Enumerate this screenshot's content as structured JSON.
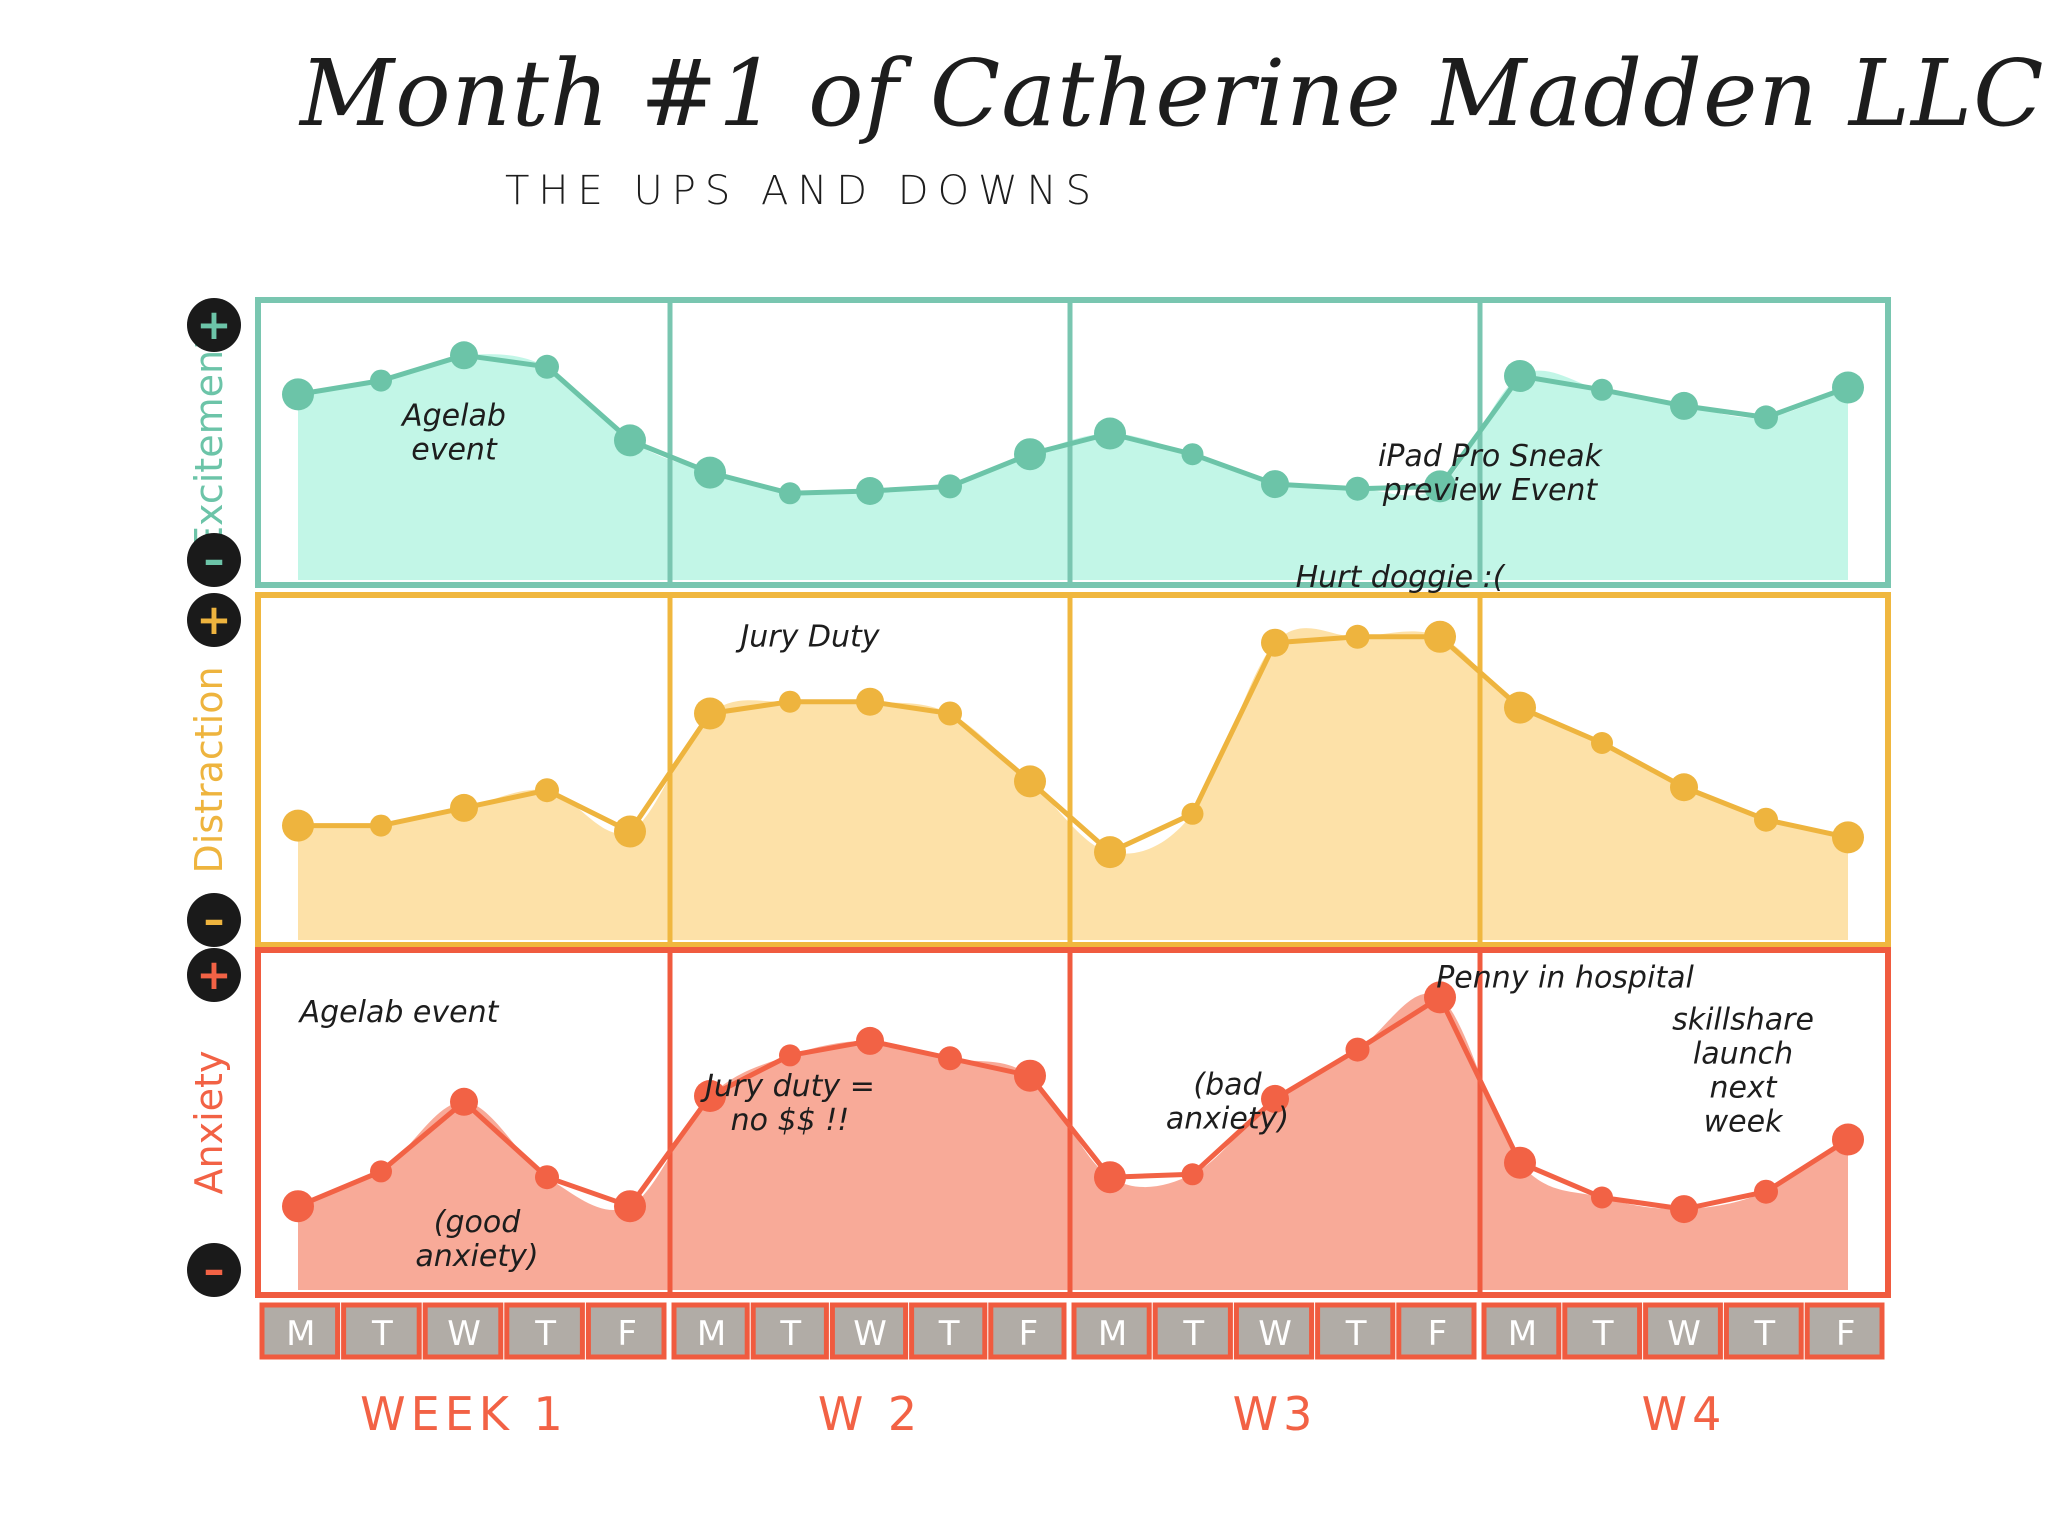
{
  "title": "Month #1 of Catherine Madden LLC",
  "subtitle": "THE UPS AND DOWNS",
  "colors": {
    "excitement_line": "#6cc4a8",
    "excitement_fill": "#bff5e6",
    "excitement_frame": "#79c6b0",
    "distraction_line": "#eeb43e",
    "distraction_fill": "#fddfa3",
    "distraction_frame": "#f0b73f",
    "anxiety_line": "#f26245",
    "anxiety_fill": "#f8a592",
    "anxiety_frame": "#f05b3f",
    "day_box": "#b1aca6",
    "ink": "#1d1d1d"
  },
  "scale_labels": {
    "plus": "+",
    "minus": "–"
  },
  "chart_data": {
    "type": "line",
    "title": "Month #1 of Catherine Madden LLC",
    "subtitle": "THE UPS AND DOWNS",
    "ylim": [
      0,
      10
    ],
    "weeks": [
      "WEEK 1",
      "W 2",
      "W3",
      "W4"
    ],
    "days": [
      "M",
      "T",
      "W",
      "T",
      "F"
    ],
    "series": [
      {
        "name": "Excitement",
        "key": "excitement",
        "values": [
          [
            7.2,
            7.8,
            8.9,
            8.4,
            5.2
          ],
          [
            3.8,
            2.9,
            3.0,
            3.2,
            4.6
          ],
          [
            5.5,
            4.6,
            3.3,
            3.1,
            3.2
          ],
          [
            8.0,
            7.4,
            6.7,
            6.2,
            7.5
          ]
        ],
        "annotations": [
          {
            "lines": [
              "Agelab",
              "event"
            ],
            "week": 0,
            "day": 2
          },
          {
            "lines": [
              "iPad Pro Sneak",
              "preview Event"
            ],
            "week": 3,
            "day": 0
          }
        ]
      },
      {
        "name": "Distraction",
        "key": "distraction",
        "values": [
          [
            3.2,
            3.2,
            3.8,
            4.4,
            3.0
          ],
          [
            7.0,
            7.4,
            7.4,
            7.0,
            4.7
          ],
          [
            2.3,
            3.6,
            9.4,
            9.6,
            9.6
          ],
          [
            7.2,
            6.0,
            4.5,
            3.4,
            2.8
          ]
        ],
        "annotations": [
          {
            "lines": [
              "Jury Duty"
            ],
            "week": 1,
            "day": 2
          },
          {
            "lines": [
              "Hurt doggie :("
            ],
            "week": 2,
            "day": 4
          }
        ]
      },
      {
        "name": "Anxiety",
        "key": "anxiety",
        "values": [
          [
            2.2,
            3.4,
            5.8,
            3.2,
            2.2
          ],
          [
            6.0,
            7.4,
            7.9,
            7.3,
            6.7
          ],
          [
            3.2,
            3.3,
            5.9,
            7.6,
            9.4
          ],
          [
            3.7,
            2.5,
            2.1,
            2.7,
            4.5
          ]
        ],
        "annotations": [
          {
            "lines": [
              "Agelab event"
            ],
            "week": 0,
            "day": 2
          },
          {
            "lines": [
              "(good",
              "anxiety)"
            ],
            "week": 0,
            "day": 3
          },
          {
            "lines": [
              "Jury duty =",
              "no $$ !!"
            ],
            "week": 1,
            "day": 2
          },
          {
            "lines": [
              "Penny in hospital"
            ],
            "week": 2,
            "day": 4
          },
          {
            "lines": [
              "(bad",
              "anxiety)"
            ],
            "week": 2,
            "day": 3
          },
          {
            "lines": [
              "skillshare",
              "launch",
              "next",
              "week"
            ],
            "week": 3,
            "day": 4
          }
        ]
      }
    ]
  }
}
